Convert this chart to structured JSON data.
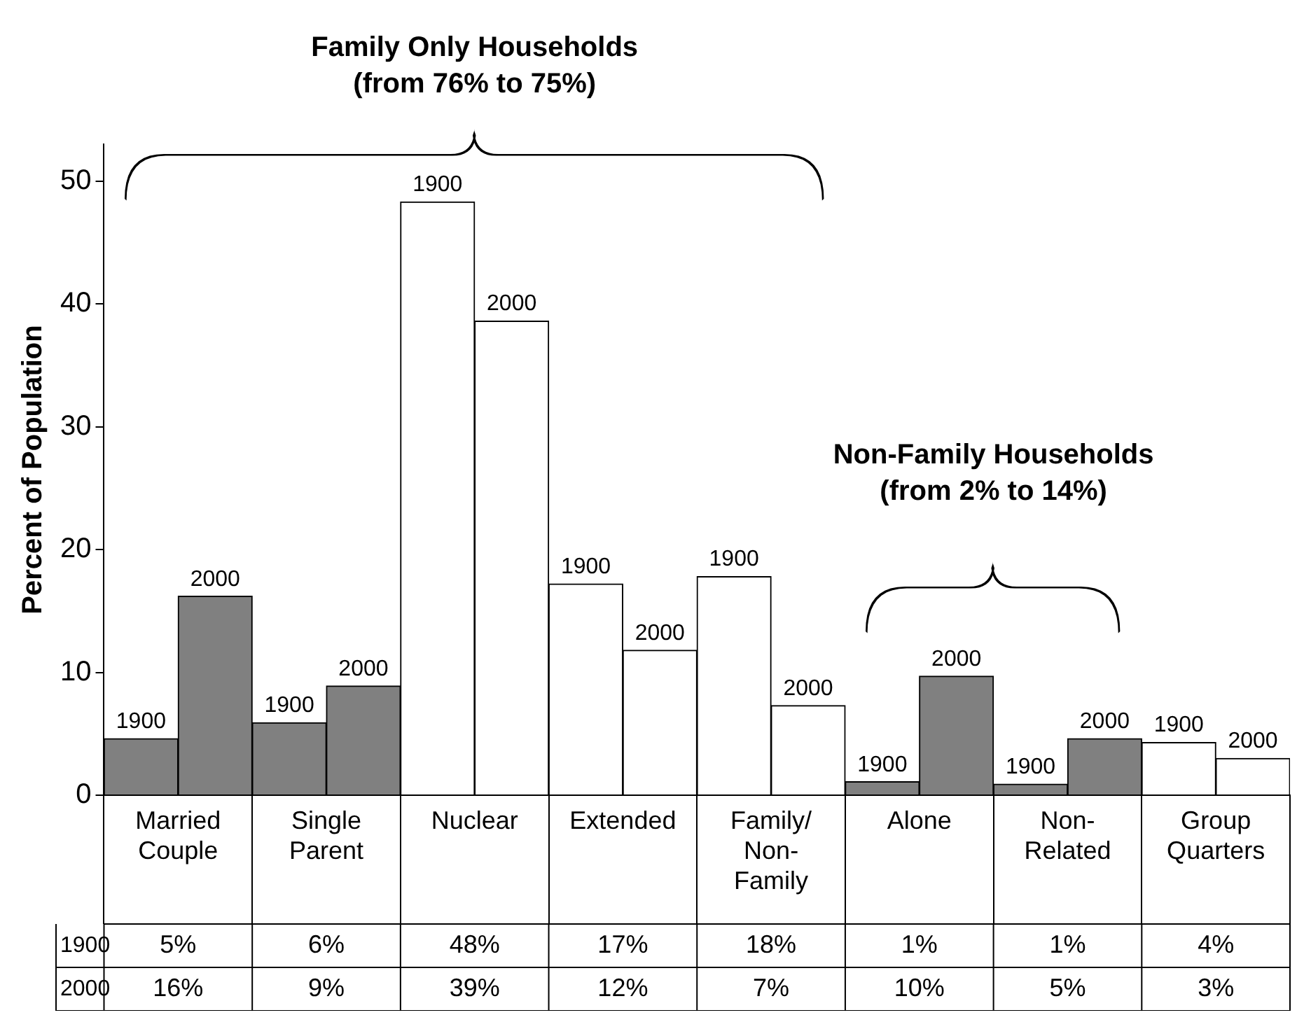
{
  "chart_data": {
    "type": "bar",
    "ylabel": "Percent of Population",
    "categories": [
      "Married Couple",
      "Single Parent",
      "Nuclear",
      "Extended",
      "Family/Non-Family",
      "Alone",
      "Non-Related",
      "Group Quarters"
    ],
    "series": [
      {
        "name": "1900",
        "colors": [
          "#808080",
          "#808080",
          "#ffffff",
          "#ffffff",
          "#ffffff",
          "#808080",
          "#808080",
          "#ffffff"
        ],
        "values": [
          4.6,
          5.9,
          48.3,
          17.2,
          17.8,
          1.1,
          0.9,
          4.3
        ],
        "value_labels": [
          "5%",
          "6%",
          "48%",
          "17%",
          "18%",
          "1%",
          "1%",
          "4%"
        ]
      },
      {
        "name": "2000",
        "colors": [
          "#808080",
          "#808080",
          "#ffffff",
          "#ffffff",
          "#ffffff",
          "#808080",
          "#808080",
          "#ffffff"
        ],
        "values": [
          16.2,
          8.9,
          38.6,
          11.8,
          7.3,
          9.7,
          4.6,
          3.0
        ],
        "value_labels": [
          "16%",
          "9%",
          "39%",
          "12%",
          "7%",
          "10%",
          "5%",
          "3%"
        ]
      }
    ],
    "annotations": [
      "Family Only Households\n(from 76% to 75%)",
      "Non-Family Households\n(from 2% to 14%)"
    ],
    "ylim": [
      0,
      53
    ],
    "yticks": [
      0,
      10,
      20,
      30,
      40,
      50
    ],
    "grid": false,
    "legend": false
  }
}
